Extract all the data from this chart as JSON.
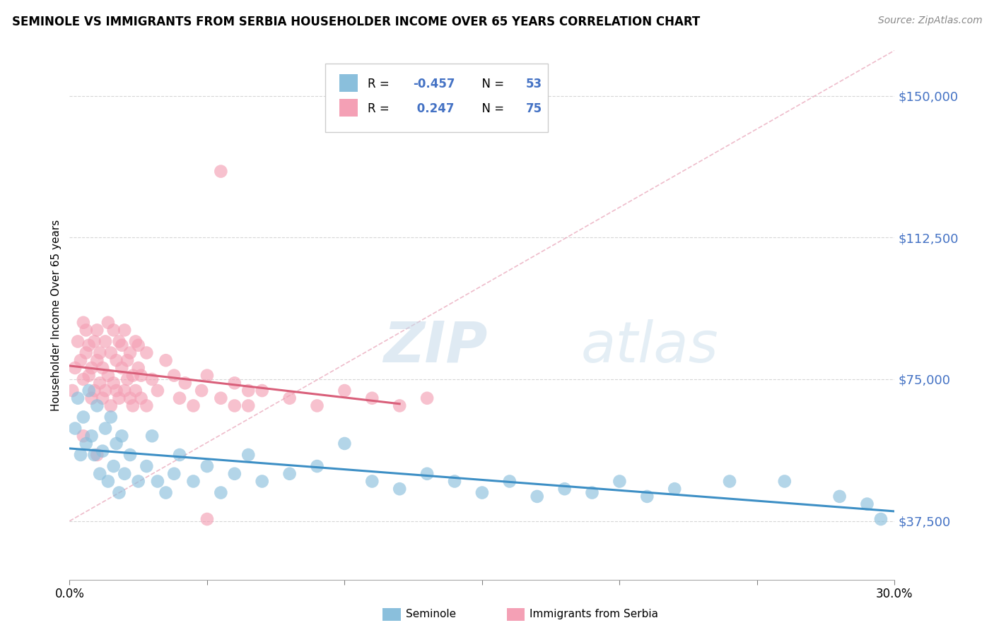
{
  "title": "SEMINOLE VS IMMIGRANTS FROM SERBIA HOUSEHOLDER INCOME OVER 65 YEARS CORRELATION CHART",
  "source": "Source: ZipAtlas.com",
  "ylabel": "Householder Income Over 65 years",
  "legend_label_1": "Seminole",
  "legend_label_2": "Immigrants from Serbia",
  "R1": -0.457,
  "N1": 53,
  "R2": 0.247,
  "N2": 75,
  "color_blue": "#8abfdc",
  "color_pink": "#f4a0b5",
  "color_blue_line": "#3d8fc5",
  "color_pink_line": "#d95f7a",
  "color_diag": "#e8a0b0",
  "yticks": [
    37500,
    75000,
    112500,
    150000
  ],
  "ytick_labels": [
    "$37,500",
    "$75,000",
    "$112,500",
    "$150,000"
  ],
  "xmin": 0.0,
  "xmax": 0.3,
  "ymin": 22000,
  "ymax": 162000,
  "watermark_zip": "ZIP",
  "watermark_atlas": "atlas",
  "seminole_x": [
    0.002,
    0.003,
    0.004,
    0.005,
    0.006,
    0.007,
    0.008,
    0.009,
    0.01,
    0.011,
    0.012,
    0.013,
    0.014,
    0.015,
    0.016,
    0.017,
    0.018,
    0.019,
    0.02,
    0.022,
    0.025,
    0.028,
    0.03,
    0.032,
    0.035,
    0.038,
    0.04,
    0.045,
    0.05,
    0.055,
    0.06,
    0.065,
    0.07,
    0.08,
    0.09,
    0.1,
    0.11,
    0.12,
    0.13,
    0.14,
    0.15,
    0.16,
    0.17,
    0.18,
    0.19,
    0.2,
    0.21,
    0.22,
    0.24,
    0.26,
    0.28,
    0.29,
    0.295
  ],
  "seminole_y": [
    62000,
    70000,
    55000,
    65000,
    58000,
    72000,
    60000,
    55000,
    68000,
    50000,
    56000,
    62000,
    48000,
    65000,
    52000,
    58000,
    45000,
    60000,
    50000,
    55000,
    48000,
    52000,
    60000,
    48000,
    45000,
    50000,
    55000,
    48000,
    52000,
    45000,
    50000,
    55000,
    48000,
    50000,
    52000,
    58000,
    48000,
    46000,
    50000,
    48000,
    45000,
    48000,
    44000,
    46000,
    45000,
    48000,
    44000,
    46000,
    48000,
    48000,
    44000,
    42000,
    38000
  ],
  "serbia_x": [
    0.001,
    0.002,
    0.003,
    0.004,
    0.005,
    0.005,
    0.006,
    0.006,
    0.007,
    0.007,
    0.008,
    0.008,
    0.009,
    0.009,
    0.01,
    0.01,
    0.011,
    0.011,
    0.012,
    0.012,
    0.013,
    0.013,
    0.014,
    0.014,
    0.015,
    0.015,
    0.016,
    0.016,
    0.017,
    0.017,
    0.018,
    0.018,
    0.019,
    0.019,
    0.02,
    0.02,
    0.021,
    0.021,
    0.022,
    0.022,
    0.023,
    0.023,
    0.024,
    0.024,
    0.025,
    0.025,
    0.026,
    0.026,
    0.028,
    0.028,
    0.03,
    0.032,
    0.035,
    0.038,
    0.04,
    0.042,
    0.045,
    0.048,
    0.05,
    0.055,
    0.06,
    0.065,
    0.07,
    0.08,
    0.09,
    0.1,
    0.11,
    0.12,
    0.13,
    0.05,
    0.055,
    0.06,
    0.065,
    0.005,
    0.01
  ],
  "serbia_y": [
    72000,
    78000,
    85000,
    80000,
    90000,
    75000,
    82000,
    88000,
    76000,
    84000,
    78000,
    70000,
    85000,
    72000,
    80000,
    88000,
    74000,
    82000,
    78000,
    70000,
    85000,
    72000,
    90000,
    76000,
    82000,
    68000,
    88000,
    74000,
    80000,
    72000,
    85000,
    70000,
    78000,
    84000,
    72000,
    88000,
    75000,
    80000,
    70000,
    82000,
    76000,
    68000,
    85000,
    72000,
    78000,
    84000,
    70000,
    76000,
    82000,
    68000,
    75000,
    72000,
    80000,
    76000,
    70000,
    74000,
    68000,
    72000,
    76000,
    70000,
    74000,
    68000,
    72000,
    70000,
    68000,
    72000,
    70000,
    68000,
    70000,
    38000,
    130000,
    68000,
    72000,
    60000,
    55000
  ]
}
